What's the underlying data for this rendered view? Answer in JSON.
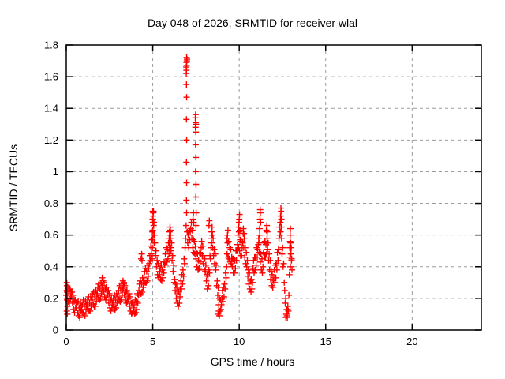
{
  "chart_data": {
    "type": "scatter",
    "title": "Day 048 of 2026, SRMTID for receiver wlal",
    "xlabel": "GPS time / hours",
    "ylabel": "SRMTID / TECUs",
    "xlim": [
      0,
      24
    ],
    "ylim": [
      0,
      1.8
    ],
    "grid": true,
    "legend": "none",
    "marker": "plus",
    "marker_color": "#ff0000",
    "grid_color": "#9c9c9c",
    "frame_color": "#000000",
    "xticks": {
      "values": [
        0,
        5,
        10,
        15,
        20
      ],
      "labels": [
        "0",
        "5",
        "10",
        "15",
        "20"
      ]
    },
    "yticks": {
      "values": [
        0,
        0.2,
        0.4,
        0.6,
        0.8,
        1.0,
        1.2,
        1.4,
        1.6,
        1.8
      ],
      "labels": [
        "0",
        "0.2",
        "0.4",
        "0.6",
        "0.8",
        "1",
        "1.2",
        "1.4",
        "1.6",
        "1.8"
      ]
    },
    "series": [
      {
        "name": "SRMTID",
        "x_start": 0.0,
        "x_step": 0.03,
        "y": [
          0.22,
          0.25,
          0.2,
          0.27,
          0.18,
          0.23,
          0.17,
          0.26,
          0.2,
          0.24,
          0.21,
          0.24,
          0.17,
          0.22,
          0.13,
          0.18,
          0.11,
          0.19,
          0.14,
          0.17,
          0.14,
          0.17,
          0.11,
          0.18,
          0.09,
          0.14,
          0.08,
          0.17,
          0.12,
          0.15,
          0.13,
          0.16,
          0.11,
          0.19,
          0.1,
          0.15,
          0.09,
          0.18,
          0.13,
          0.16,
          0.15,
          0.19,
          0.13,
          0.21,
          0.12,
          0.17,
          0.12,
          0.21,
          0.15,
          0.19,
          0.19,
          0.23,
          0.16,
          0.24,
          0.15,
          0.21,
          0.15,
          0.25,
          0.18,
          0.22,
          0.23,
          0.27,
          0.2,
          0.29,
          0.19,
          0.26,
          0.2,
          0.3,
          0.23,
          0.27,
          0.28,
          0.31,
          0.24,
          0.3,
          0.21,
          0.26,
          0.19,
          0.27,
          0.21,
          0.24,
          0.22,
          0.25,
          0.17,
          0.23,
          0.14,
          0.19,
          0.12,
          0.2,
          0.14,
          0.17,
          0.16,
          0.2,
          0.13,
          0.22,
          0.13,
          0.19,
          0.14,
          0.23,
          0.17,
          0.21,
          0.21,
          0.25,
          0.19,
          0.28,
          0.18,
          0.25,
          0.19,
          0.29,
          0.22,
          0.26,
          0.27,
          0.3,
          0.22,
          0.28,
          0.19,
          0.24,
          0.17,
          0.25,
          0.18,
          0.21,
          0.2,
          0.23,
          0.15,
          0.21,
          0.12,
          0.17,
          0.1,
          0.17,
          0.11,
          0.14,
          0.12,
          0.16,
          0.1,
          0.19,
          0.11,
          0.18,
          0.13,
          0.23,
          0.17,
          0.22,
          0.25,
          0.29,
          0.22,
          0.31,
          0.23,
          0.29,
          0.24,
          0.33,
          0.27,
          0.31,
          0.33,
          0.37,
          0.3,
          0.39,
          0.3,
          0.37,
          0.31,
          0.41,
          0.34,
          0.39,
          0.42,
          0.47,
          0.44,
          0.53,
          0.48,
          0.57,
          0.62,
          0.7,
          0.75,
          0.68,
          0.6,
          0.55,
          0.47,
          0.5,
          0.4,
          0.44,
          0.35,
          0.42,
          0.33,
          0.37,
          0.35,
          0.39,
          0.32,
          0.41,
          0.31,
          0.38,
          0.33,
          0.43,
          0.36,
          0.41,
          0.43,
          0.48,
          0.41,
          0.52,
          0.43,
          0.51,
          0.45,
          0.55,
          0.48,
          0.53,
          0.55,
          0.6,
          0.5,
          0.55,
          0.44,
          0.47,
          0.37,
          0.41,
          0.3,
          0.32,
          0.25,
          0.29,
          0.2,
          0.27,
          0.17,
          0.23,
          0.15,
          0.24,
          0.17,
          0.21,
          0.26,
          0.31,
          0.26,
          0.35,
          0.29,
          0.38,
          0.34,
          0.45,
          0.42,
          0.52,
          0.58,
          0.66,
          0.74,
          0.62,
          0.55,
          0.6,
          0.52,
          0.63,
          0.57,
          0.62,
          0.64,
          0.68,
          0.58,
          0.63,
          0.52,
          0.57,
          0.49,
          0.56,
          0.48,
          0.53,
          0.45,
          0.49,
          0.4,
          0.48,
          0.38,
          0.44,
          0.39,
          0.49,
          0.43,
          0.48,
          0.52,
          0.56,
          0.47,
          0.53,
          0.42,
          0.47,
          0.38,
          0.45,
          0.37,
          0.41,
          0.31,
          0.35,
          0.26,
          0.34,
          0.28,
          0.38,
          0.36,
          0.47,
          0.45,
          0.52,
          0.55,
          0.6,
          0.52,
          0.58,
          0.47,
          0.51,
          0.42,
          0.48,
          0.38,
          0.41,
          0.28,
          0.31,
          0.22,
          0.27,
          0.16,
          0.2,
          0.12,
          0.19,
          0.13,
          0.16,
          0.2,
          0.25,
          0.18,
          0.27,
          0.21,
          0.29,
          0.26,
          0.36,
          0.33,
          0.4,
          0.48,
          0.55,
          0.46,
          0.56,
          0.45,
          0.52,
          0.43,
          0.51,
          0.42,
          0.46,
          0.4,
          0.45,
          0.36,
          0.45,
          0.36,
          0.44,
          0.39,
          0.5,
          0.44,
          0.5,
          0.54,
          0.6,
          0.52,
          0.62,
          0.5,
          0.57,
          0.47,
          0.56,
          0.47,
          0.52,
          0.55,
          0.61,
          0.52,
          0.58,
          0.46,
          0.52,
          0.42,
          0.49,
          0.4,
          0.44,
          0.34,
          0.38,
          0.29,
          0.36,
          0.26,
          0.31,
          0.24,
          0.32,
          0.26,
          0.3,
          0.39,
          0.44,
          0.36,
          0.46,
          0.38,
          0.46,
          0.41,
          0.52,
          0.46,
          0.51,
          0.54,
          0.58,
          0.49,
          0.55,
          0.43,
          0.48,
          0.38,
          0.45,
          0.36,
          0.4,
          0.49,
          0.55,
          0.46,
          0.56,
          0.46,
          0.54,
          0.48,
          0.58,
          0.51,
          0.55,
          0.44,
          0.48,
          0.38,
          0.44,
          0.32,
          0.37,
          0.28,
          0.35,
          0.27,
          0.31,
          0.33,
          0.38,
          0.3,
          0.41,
          0.33,
          0.42,
          0.38,
          0.49,
          0.44,
          0.51,
          0.58,
          0.65,
          0.6,
          0.72,
          0.65,
          0.58,
          0.48,
          0.52,
          0.4,
          0.42,
          0.3,
          0.25,
          0.17,
          0.2,
          0.1,
          0.13,
          0.08,
          0.15,
          0.12,
          0.22,
          0.35,
          0.46,
          0.4,
          0.52,
          0.44,
          0.38
        ]
      }
    ],
    "extra_points": [
      [
        0.03,
        0.3
      ],
      [
        0.04,
        0.28
      ],
      [
        0.05,
        0.24
      ],
      [
        0.03,
        0.12
      ],
      [
        0.06,
        0.1
      ],
      [
        0.07,
        0.15
      ],
      [
        0.05,
        0.19
      ],
      [
        0.08,
        0.26
      ],
      [
        2.08,
        0.33
      ],
      [
        2.12,
        0.31
      ],
      [
        2.15,
        0.25
      ],
      [
        3.28,
        0.31
      ],
      [
        3.33,
        0.29
      ],
      [
        4.33,
        0.45
      ],
      [
        4.36,
        0.48
      ],
      [
        4.38,
        0.44
      ],
      [
        4.97,
        0.45
      ],
      [
        4.98,
        0.52
      ],
      [
        4.99,
        0.58
      ],
      [
        5.0,
        0.63
      ],
      [
        5.01,
        0.68
      ],
      [
        5.02,
        0.72
      ],
      [
        5.0,
        0.75
      ],
      [
        5.03,
        0.74
      ],
      [
        4.99,
        0.7
      ],
      [
        5.05,
        0.66
      ],
      [
        5.06,
        0.6
      ],
      [
        5.08,
        0.55
      ],
      [
        5.95,
        0.58
      ],
      [
        5.97,
        0.62
      ],
      [
        6.0,
        0.65
      ],
      [
        6.02,
        0.63
      ],
      [
        6.03,
        0.58
      ],
      [
        5.98,
        0.55
      ],
      [
        6.05,
        0.52
      ],
      [
        6.94,
        1.66
      ],
      [
        6.95,
        1.69
      ],
      [
        6.96,
        1.72
      ],
      [
        6.97,
        1.7
      ],
      [
        6.95,
        1.64
      ],
      [
        6.96,
        1.67
      ],
      [
        6.98,
        1.71
      ],
      [
        6.94,
        1.62
      ],
      [
        6.95,
        1.55
      ],
      [
        6.96,
        1.47
      ],
      [
        6.95,
        1.33
      ],
      [
        6.96,
        1.2
      ],
      [
        6.95,
        1.06
      ],
      [
        6.96,
        0.93
      ],
      [
        6.95,
        0.82
      ],
      [
        7.33,
        0.7
      ],
      [
        7.35,
        0.74
      ],
      [
        7.37,
        0.68
      ],
      [
        7.46,
        1.34
      ],
      [
        7.48,
        1.31
      ],
      [
        7.47,
        1.28
      ],
      [
        7.49,
        1.25
      ],
      [
        7.48,
        1.36
      ],
      [
        7.5,
        1.3
      ],
      [
        7.48,
        1.17
      ],
      [
        7.49,
        1.09
      ],
      [
        7.48,
        1.0
      ],
      [
        7.5,
        0.92
      ],
      [
        7.49,
        0.84
      ],
      [
        7.51,
        0.74
      ],
      [
        7.5,
        0.66
      ],
      [
        8.25,
        0.66
      ],
      [
        8.27,
        0.69
      ],
      [
        8.4,
        0.62
      ],
      [
        8.43,
        0.65
      ],
      [
        8.45,
        0.6
      ],
      [
        8.38,
        0.58
      ],
      [
        8.78,
        0.1
      ],
      [
        8.82,
        0.12
      ],
      [
        8.85,
        0.09
      ],
      [
        9.3,
        0.58
      ],
      [
        9.32,
        0.6
      ],
      [
        9.35,
        0.63
      ],
      [
        9.97,
        0.65
      ],
      [
        10.0,
        0.7
      ],
      [
        10.02,
        0.73
      ],
      [
        9.99,
        0.68
      ],
      [
        10.04,
        0.63
      ],
      [
        10.24,
        0.64
      ],
      [
        10.27,
        0.61
      ],
      [
        11.18,
        0.64
      ],
      [
        11.2,
        0.7
      ],
      [
        11.22,
        0.74
      ],
      [
        11.21,
        0.76
      ],
      [
        11.24,
        0.68
      ],
      [
        11.19,
        0.6
      ],
      [
        11.57,
        0.63
      ],
      [
        11.6,
        0.66
      ],
      [
        11.62,
        0.62
      ],
      [
        12.38,
        0.68
      ],
      [
        12.4,
        0.72
      ],
      [
        12.42,
        0.75
      ],
      [
        12.41,
        0.77
      ],
      [
        12.44,
        0.7
      ],
      [
        12.39,
        0.62
      ],
      [
        12.45,
        0.65
      ],
      [
        12.7,
        0.08
      ],
      [
        12.73,
        0.1
      ],
      [
        12.76,
        0.09
      ],
      [
        12.8,
        0.13
      ],
      [
        12.92,
        0.52
      ],
      [
        12.94,
        0.56
      ],
      [
        12.95,
        0.6
      ],
      [
        12.96,
        0.64
      ],
      [
        12.97,
        0.55
      ],
      [
        12.99,
        0.48
      ],
      [
        13.01,
        0.52
      ],
      [
        13.03,
        0.45
      ]
    ]
  }
}
